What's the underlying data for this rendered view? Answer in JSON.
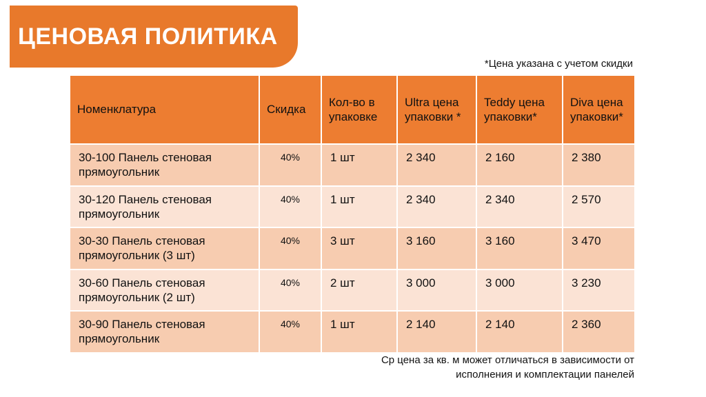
{
  "slide": {
    "title": "ЦЕНОВАЯ ПОЛИТИКА",
    "top_note": "*Цена указана с учетом скидки",
    "footer_note": "Ср цена за кв. м может отличаться в зависимости от исполнения и комплектации панелей"
  },
  "colors": {
    "banner_orange": "#e8792b",
    "header_orange": "#ed7d31",
    "row_dark": "#f7ccb0",
    "row_light": "#fbe3d5"
  },
  "table": {
    "headers": [
      "Номенклатура",
      "Скидка",
      "Кол-во в упаковке",
      "Ultra цена упаковки *",
      "Teddy цена упаковки*",
      "Diva цена упаковки*"
    ],
    "rows": [
      {
        "cells": [
          "30-100 Панель стеновая прямоугольник",
          "40%",
          "1 шт",
          "2 340",
          "2 160",
          "2 380"
        ]
      },
      {
        "cells": [
          "30-120 Панель стеновая прямоугольник",
          "40%",
          "1 шт",
          "2 340",
          "2 340",
          "2 570"
        ]
      },
      {
        "cells": [
          "30-30 Панель стеновая прямоугольник (3 шт)",
          "40%",
          "3 шт",
          "3 160",
          "3 160",
          "3 470"
        ]
      },
      {
        "cells": [
          "30-60 Панель стеновая прямоугольник (2 шт)",
          "40%",
          "2 шт",
          "3 000",
          "3 000",
          "3 230"
        ]
      },
      {
        "cells": [
          "30-90 Панель стеновая прямоугольник",
          "40%",
          "1 шт",
          "2 140",
          "2 140",
          "2 360"
        ]
      }
    ]
  }
}
